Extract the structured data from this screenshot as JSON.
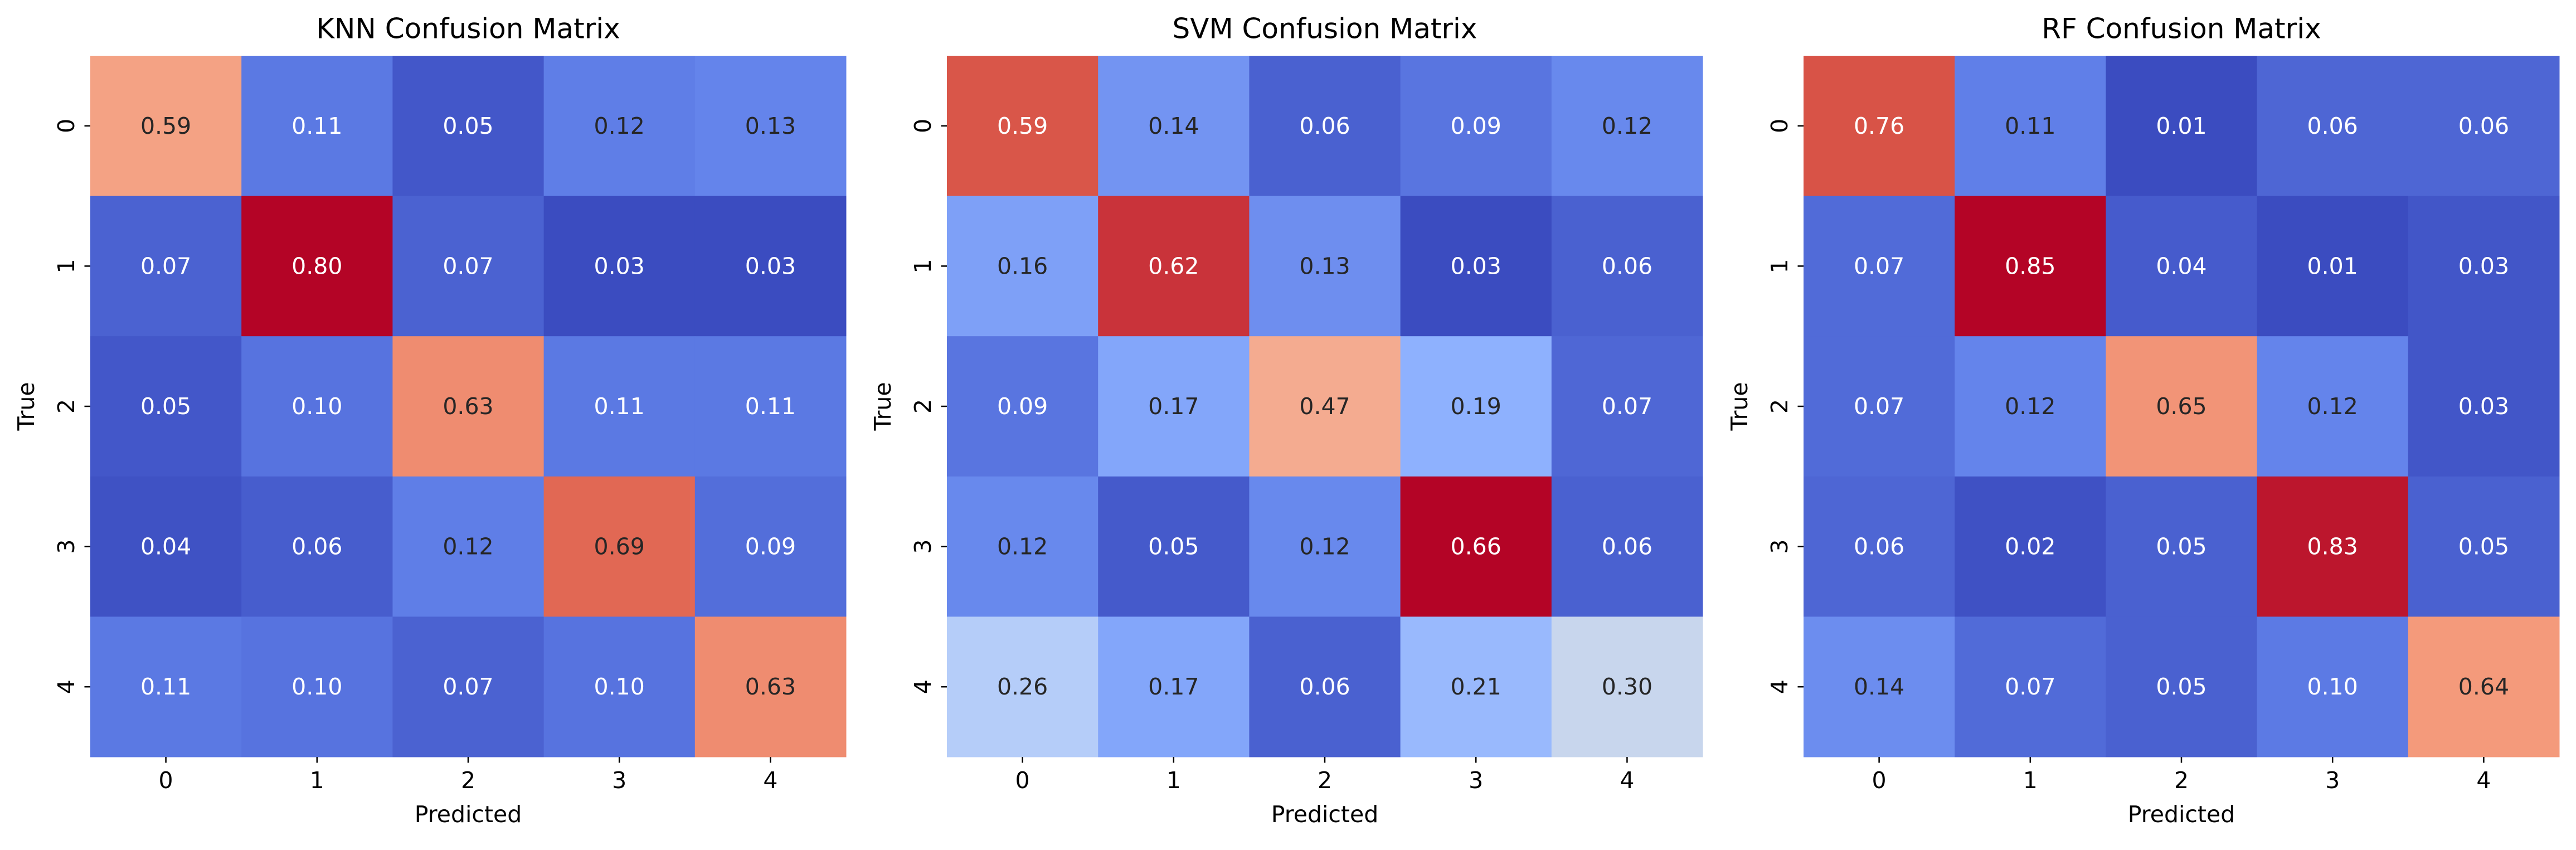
{
  "chart_data": [
    {
      "type": "heatmap",
      "title": "KNN Confusion Matrix",
      "xlabel": "Predicted",
      "ylabel": "True",
      "x_tick_labels": [
        "0",
        "1",
        "2",
        "3",
        "4"
      ],
      "y_tick_labels": [
        "0",
        "1",
        "2",
        "3",
        "4"
      ],
      "values": [
        [
          0.59,
          0.11,
          0.05,
          0.12,
          0.13
        ],
        [
          0.07,
          0.8,
          0.07,
          0.03,
          0.03
        ],
        [
          0.05,
          0.1,
          0.63,
          0.11,
          0.11
        ],
        [
          0.04,
          0.06,
          0.12,
          0.69,
          0.09
        ],
        [
          0.11,
          0.1,
          0.07,
          0.1,
          0.63
        ]
      ],
      "value_labels": [
        [
          "0.59",
          "0.11",
          "0.05",
          "0.12",
          "0.13"
        ],
        [
          "0.07",
          "0.80",
          "0.07",
          "0.03",
          "0.03"
        ],
        [
          "0.05",
          "0.10",
          "0.63",
          "0.11",
          "0.11"
        ],
        [
          "0.04",
          "0.06",
          "0.12",
          "0.69",
          "0.09"
        ],
        [
          "0.11",
          "0.10",
          "0.07",
          "0.10",
          "0.63"
        ]
      ]
    },
    {
      "type": "heatmap",
      "title": "SVM Confusion Matrix",
      "xlabel": "Predicted",
      "ylabel": "True",
      "x_tick_labels": [
        "0",
        "1",
        "2",
        "3",
        "4"
      ],
      "y_tick_labels": [
        "0",
        "1",
        "2",
        "3",
        "4"
      ],
      "values": [
        [
          0.59,
          0.14,
          0.06,
          0.09,
          0.12
        ],
        [
          0.16,
          0.62,
          0.13,
          0.03,
          0.06
        ],
        [
          0.09,
          0.17,
          0.47,
          0.19,
          0.07
        ],
        [
          0.12,
          0.05,
          0.12,
          0.66,
          0.06
        ],
        [
          0.26,
          0.17,
          0.06,
          0.21,
          0.3
        ]
      ],
      "value_labels": [
        [
          "0.59",
          "0.14",
          "0.06",
          "0.09",
          "0.12"
        ],
        [
          "0.16",
          "0.62",
          "0.13",
          "0.03",
          "0.06"
        ],
        [
          "0.09",
          "0.17",
          "0.47",
          "0.19",
          "0.07"
        ],
        [
          "0.12",
          "0.05",
          "0.12",
          "0.66",
          "0.06"
        ],
        [
          "0.26",
          "0.17",
          "0.06",
          "0.21",
          "0.30"
        ]
      ]
    },
    {
      "type": "heatmap",
      "title": "RF Confusion Matrix",
      "xlabel": "Predicted",
      "ylabel": "True",
      "x_tick_labels": [
        "0",
        "1",
        "2",
        "3",
        "4"
      ],
      "y_tick_labels": [
        "0",
        "1",
        "2",
        "3",
        "4"
      ],
      "values": [
        [
          0.76,
          0.11,
          0.01,
          0.06,
          0.06
        ],
        [
          0.07,
          0.85,
          0.04,
          0.01,
          0.03
        ],
        [
          0.07,
          0.12,
          0.65,
          0.12,
          0.03
        ],
        [
          0.06,
          0.02,
          0.05,
          0.83,
          0.05
        ],
        [
          0.14,
          0.07,
          0.05,
          0.1,
          0.64
        ]
      ],
      "value_labels": [
        [
          "0.76",
          "0.11",
          "0.01",
          "0.06",
          "0.06"
        ],
        [
          "0.07",
          "0.85",
          "0.04",
          "0.01",
          "0.03"
        ],
        [
          "0.07",
          "0.12",
          "0.65",
          "0.12",
          "0.03"
        ],
        [
          "0.06",
          "0.02",
          "0.05",
          "0.83",
          "0.05"
        ],
        [
          "0.14",
          "0.07",
          "0.05",
          "0.10",
          "0.64"
        ]
      ]
    }
  ],
  "colormap": "coolwarm",
  "colorbar": false,
  "grid": false
}
